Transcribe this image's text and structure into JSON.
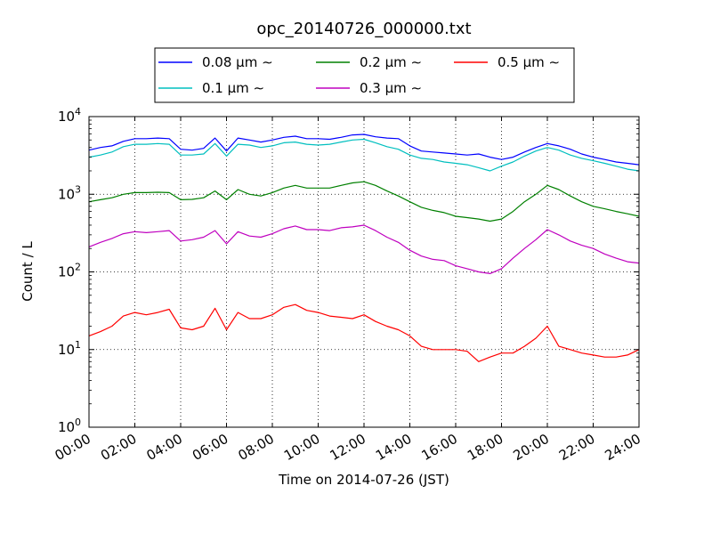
{
  "chart_data": {
    "type": "line",
    "title": "opc_20140726_000000.txt",
    "xlabel": "Time on 2014-07-26 (JST)",
    "ylabel": "Count / L",
    "xscale": "time",
    "yscale": "log",
    "xlim": [
      "2014-07-26 00:00",
      "2014-07-27 00:00"
    ],
    "ylim": [
      1,
      10000
    ],
    "grid": true,
    "legend_position": "top-center",
    "x_ticks": [
      "00:00",
      "02:00",
      "04:00",
      "06:00",
      "08:00",
      "10:00",
      "12:00",
      "14:00",
      "16:00",
      "18:00",
      "20:00",
      "22:00",
      "24:00"
    ],
    "y_ticks": [
      {
        "base": "10",
        "exp": "0"
      },
      {
        "base": "10",
        "exp": "1"
      },
      {
        "base": "10",
        "exp": "2"
      },
      {
        "base": "10",
        "exp": "3"
      },
      {
        "base": "10",
        "exp": "4"
      }
    ],
    "x": [
      "00:00",
      "00:30",
      "01:00",
      "01:30",
      "02:00",
      "02:30",
      "03:00",
      "03:30",
      "04:00",
      "04:30",
      "05:00",
      "05:30",
      "06:00",
      "06:30",
      "07:00",
      "07:30",
      "08:00",
      "08:30",
      "09:00",
      "09:30",
      "10:00",
      "10:30",
      "11:00",
      "11:30",
      "12:00",
      "12:30",
      "13:00",
      "13:30",
      "14:00",
      "14:30",
      "15:00",
      "15:30",
      "16:00",
      "16:30",
      "17:00",
      "17:30",
      "18:00",
      "18:30",
      "19:00",
      "19:30",
      "20:00",
      "20:30",
      "21:00",
      "21:30",
      "22:00",
      "22:30",
      "23:00",
      "23:30",
      "24:00"
    ],
    "series": [
      {
        "name": "0.08 μm ∼",
        "color": "#0000ff",
        "values": [
          3700,
          4000,
          4200,
          4800,
          5200,
          5200,
          5300,
          5200,
          3800,
          3700,
          3900,
          5300,
          3600,
          5300,
          5000,
          4700,
          5000,
          5400,
          5600,
          5200,
          5200,
          5100,
          5400,
          5800,
          5900,
          5500,
          5300,
          5200,
          4200,
          3600,
          3500,
          3400,
          3300,
          3200,
          3300,
          3000,
          2800,
          3000,
          3500,
          4000,
          4500,
          4200,
          3800,
          3300,
          3000,
          2800,
          2600,
          2500,
          2400
        ]
      },
      {
        "name": "0.1 μm ∼",
        "color": "#00bfbf",
        "values": [
          3000,
          3200,
          3500,
          4100,
          4400,
          4400,
          4500,
          4400,
          3200,
          3200,
          3300,
          4500,
          3100,
          4400,
          4300,
          4000,
          4200,
          4600,
          4700,
          4400,
          4300,
          4400,
          4700,
          5000,
          5100,
          4600,
          4100,
          3800,
          3200,
          2900,
          2800,
          2600,
          2500,
          2400,
          2200,
          2000,
          2300,
          2600,
          3100,
          3600,
          4000,
          3700,
          3200,
          2900,
          2700,
          2500,
          2300,
          2100,
          2000
        ]
      },
      {
        "name": "0.2 μm ∼",
        "color": "#008000",
        "values": [
          800,
          850,
          900,
          1000,
          1050,
          1050,
          1060,
          1050,
          850,
          860,
          900,
          1100,
          850,
          1150,
          1000,
          950,
          1050,
          1200,
          1300,
          1200,
          1200,
          1200,
          1300,
          1400,
          1450,
          1300,
          1100,
          950,
          800,
          680,
          620,
          580,
          520,
          500,
          480,
          450,
          480,
          600,
          800,
          1000,
          1300,
          1150,
          950,
          800,
          700,
          650,
          600,
          560,
          520
        ]
      },
      {
        "name": "0.3 μm ∼",
        "color": "#bf00bf",
        "values": [
          210,
          240,
          270,
          310,
          330,
          320,
          330,
          340,
          250,
          260,
          280,
          340,
          230,
          330,
          290,
          280,
          310,
          360,
          390,
          350,
          350,
          340,
          370,
          380,
          400,
          340,
          280,
          240,
          190,
          160,
          145,
          140,
          120,
          110,
          100,
          95,
          110,
          150,
          200,
          260,
          350,
          300,
          250,
          220,
          200,
          170,
          150,
          135,
          130
        ]
      },
      {
        "name": "0.5 μm ∼",
        "color": "#ff0000",
        "values": [
          15,
          17,
          20,
          27,
          30,
          28,
          30,
          33,
          19,
          18,
          20,
          34,
          18,
          30,
          25,
          25,
          28,
          35,
          38,
          32,
          30,
          27,
          26,
          25,
          28,
          23,
          20,
          18,
          15,
          11,
          10,
          10,
          10,
          9.5,
          7,
          8,
          9,
          9,
          11,
          14,
          20,
          11,
          10,
          9,
          8.5,
          8,
          8,
          8.5,
          10
        ]
      }
    ]
  }
}
